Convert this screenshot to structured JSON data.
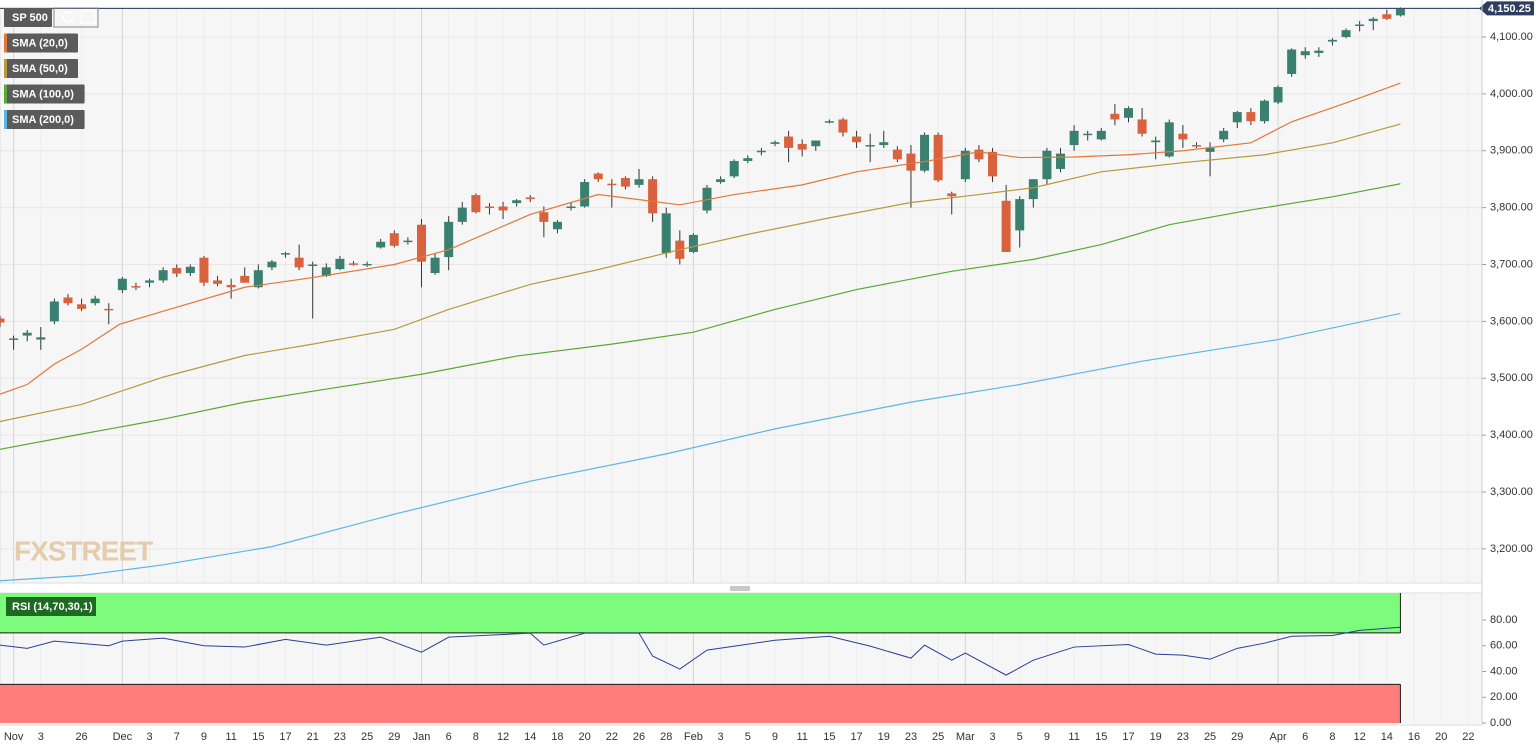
{
  "chart_data": [
    {
      "type": "candlestick",
      "title": "SP 500",
      "xlim": [
        0,
        109
      ],
      "ylim": [
        3140,
        4151
      ],
      "yticks": [
        {
          "value": 3200,
          "label": "3,200.00"
        },
        {
          "value": 3300,
          "label": "3,300.00"
        },
        {
          "value": 3400,
          "label": "3,400.00"
        },
        {
          "value": 3500,
          "label": "3,500.00"
        },
        {
          "value": 3600,
          "label": "3,600.00"
        },
        {
          "value": 3700,
          "label": "3,700.00"
        },
        {
          "value": 3800,
          "label": "3,800.00"
        },
        {
          "value": 3900,
          "label": "3,900.00"
        },
        {
          "value": 4000,
          "label": "4,000.00"
        },
        {
          "value": 4100,
          "label": "4,100.00"
        }
      ],
      "last_price": {
        "value": 4150.25,
        "label": "4,150.25"
      },
      "watermark": "FXSTREET",
      "grid": true,
      "series": [
        {
          "name": "SP 500",
          "up_color": "#3a8070",
          "down_color": "#d9613d",
          "x": [
            0,
            1,
            2,
            3,
            4,
            5,
            6,
            7,
            8,
            9,
            10,
            11,
            12,
            13,
            14,
            15,
            16,
            17,
            18,
            19,
            20,
            21,
            22,
            23,
            24,
            25,
            26,
            27,
            28,
            29,
            30,
            31,
            32,
            33,
            34,
            35,
            36,
            37,
            38,
            39,
            40,
            41,
            42,
            43,
            44,
            45,
            46,
            47,
            48,
            49,
            50,
            51,
            52,
            53,
            54,
            55,
            56,
            57,
            58,
            59,
            60,
            61,
            62,
            63,
            64,
            65,
            66,
            67,
            68,
            69,
            70,
            71,
            72,
            73,
            74,
            75,
            76,
            77,
            78,
            79,
            80,
            81,
            82,
            83,
            84,
            85,
            86,
            87,
            88,
            89,
            90,
            91,
            92,
            93,
            94,
            95,
            96,
            97,
            98,
            99,
            100,
            101,
            102,
            103
          ],
          "open": [
            3605,
            3568,
            3575,
            3568,
            3600,
            3642,
            3630,
            3632,
            3622,
            3655,
            3662,
            3668,
            3672,
            3694,
            3685,
            3712,
            3672,
            3664,
            3680,
            3660,
            3695,
            3718,
            3712,
            3698,
            3680,
            3692,
            3702,
            3700,
            3730,
            3755,
            3740,
            3770,
            3685,
            3713,
            3775,
            3822,
            3802,
            3802,
            3808,
            3818,
            3792,
            3762,
            3800,
            3802,
            3860,
            3842,
            3852,
            3840,
            3850,
            3720,
            3742,
            3722,
            3795,
            3845,
            3855,
            3882,
            3898,
            3912,
            3925,
            3912,
            3908,
            3950,
            3955,
            3925,
            3908,
            3910,
            3902,
            3895,
            3865,
            3928,
            3825,
            3850,
            3902,
            3898,
            3812,
            3760,
            3815,
            3850,
            3868,
            3910,
            3928,
            3920,
            3965,
            3958,
            3955,
            3915,
            3890,
            3930,
            3910,
            3898,
            3920,
            3950,
            3968,
            3952,
            3985,
            4035,
            4068,
            4072,
            4092,
            4100,
            4120,
            4128,
            4140,
            4138
          ],
          "high": [
            3610,
            3575,
            3585,
            3590,
            3640,
            3648,
            3640,
            3645,
            3632,
            3678,
            3668,
            3675,
            3695,
            3700,
            3700,
            3715,
            3680,
            3675,
            3695,
            3700,
            3708,
            3722,
            3735,
            3705,
            3702,
            3715,
            3706,
            3705,
            3745,
            3760,
            3748,
            3780,
            3720,
            3785,
            3810,
            3825,
            3808,
            3810,
            3815,
            3822,
            3802,
            3778,
            3810,
            3850,
            3862,
            3850,
            3855,
            3868,
            3855,
            3800,
            3760,
            3755,
            3840,
            3855,
            3885,
            3892,
            3905,
            3918,
            3935,
            3920,
            3918,
            3955,
            3958,
            3935,
            3930,
            3935,
            3908,
            3910,
            3932,
            3932,
            3828,
            3905,
            3910,
            3905,
            3840,
            3820,
            3850,
            3905,
            3905,
            3945,
            3935,
            3940,
            3982,
            3978,
            3975,
            3925,
            3955,
            3945,
            3915,
            3915,
            3940,
            3970,
            3975,
            3990,
            4015,
            4080,
            4082,
            4082,
            4098,
            4115,
            4128,
            4135,
            4148,
            4152
          ],
          "low": [
            3590,
            3550,
            3565,
            3550,
            3595,
            3628,
            3618,
            3628,
            3595,
            3650,
            3655,
            3660,
            3668,
            3678,
            3680,
            3662,
            3662,
            3640,
            3668,
            3658,
            3690,
            3712,
            3690,
            3605,
            3678,
            3690,
            3698,
            3696,
            3728,
            3730,
            3735,
            3660,
            3682,
            3690,
            3770,
            3790,
            3788,
            3780,
            3802,
            3810,
            3748,
            3755,
            3795,
            3800,
            3845,
            3800,
            3832,
            3835,
            3775,
            3712,
            3700,
            3720,
            3790,
            3842,
            3852,
            3878,
            3892,
            3908,
            3880,
            3890,
            3900,
            3948,
            3925,
            3905,
            3880,
            3905,
            3880,
            3800,
            3862,
            3845,
            3788,
            3845,
            3880,
            3845,
            3722,
            3730,
            3800,
            3840,
            3862,
            3900,
            3918,
            3918,
            3945,
            3950,
            3925,
            3885,
            3888,
            3905,
            3905,
            3855,
            3915,
            3940,
            3945,
            3948,
            3982,
            4030,
            4062,
            4065,
            4085,
            4098,
            4110,
            4112,
            4130,
            4136
          ],
          "close": [
            3598,
            3570,
            3580,
            3572,
            3635,
            3632,
            3622,
            3640,
            3620,
            3675,
            3660,
            3672,
            3690,
            3684,
            3696,
            3668,
            3666,
            3660,
            3668,
            3690,
            3705,
            3720,
            3695,
            3700,
            3695,
            3710,
            3700,
            3701,
            3740,
            3733,
            3742,
            3705,
            3712,
            3775,
            3800,
            3792,
            3800,
            3795,
            3813,
            3815,
            3775,
            3775,
            3802,
            3845,
            3850,
            3840,
            3837,
            3850,
            3790,
            3790,
            3710,
            3752,
            3835,
            3850,
            3882,
            3887,
            3900,
            3915,
            3905,
            3902,
            3918,
            3952,
            3932,
            3915,
            3910,
            3915,
            3885,
            3865,
            3928,
            3848,
            3820,
            3900,
            3885,
            3855,
            3722,
            3815,
            3850,
            3900,
            3895,
            3935,
            3930,
            3935,
            3955,
            3975,
            3930,
            3918,
            3950,
            3920,
            3908,
            3905,
            3935,
            3968,
            3952,
            3988,
            4012,
            4078,
            4075,
            4076,
            4095,
            4112,
            4122,
            4132,
            4132,
            4150.25
          ]
        },
        {
          "name": "SMA (20,0)",
          "color": "#e0793a",
          "x": [
            0,
            2,
            4,
            6,
            8.8,
            12,
            18,
            23,
            29,
            33,
            39,
            44,
            50,
            54,
            59,
            63,
            68,
            72,
            75,
            79,
            83,
            87,
            92,
            95,
            99,
            103
          ],
          "values": [
            3472,
            3489,
            3525,
            3551,
            3595,
            3618,
            3660,
            3677,
            3700,
            3726,
            3788,
            3823,
            3805,
            3823,
            3840,
            3863,
            3881,
            3898,
            3888,
            3889,
            3893,
            3900,
            3914,
            3951,
            3984,
            4019
          ]
        },
        {
          "name": "SMA (50,0)",
          "color": "#b89a3c",
          "x": [
            0,
            6,
            12,
            18,
            23,
            29,
            33,
            39,
            44,
            50,
            55,
            61,
            67,
            72,
            76,
            81,
            87,
            93,
            98,
            103
          ],
          "values": [
            3424,
            3454,
            3502,
            3540,
            3560,
            3586,
            3621,
            3665,
            3691,
            3726,
            3753,
            3782,
            3809,
            3823,
            3835,
            3863,
            3879,
            3893,
            3914,
            3947
          ]
        },
        {
          "name": "SMA (100,0)",
          "color": "#5aa832",
          "x": [
            0,
            6,
            12,
            18,
            24,
            31,
            38,
            45,
            51,
            57,
            63,
            70,
            76,
            81,
            86,
            92,
            98,
            103
          ],
          "values": [
            3375,
            3402,
            3428,
            3458,
            3481,
            3507,
            3539,
            3560,
            3581,
            3621,
            3656,
            3688,
            3709,
            3735,
            3770,
            3796,
            3819,
            3842
          ]
        },
        {
          "name": "SMA (200,0)",
          "color": "#5cb6e4",
          "x": [
            0,
            6,
            12,
            20,
            29,
            39,
            49,
            57,
            67,
            75,
            84,
            94,
            103
          ],
          "values": [
            3144,
            3153,
            3172,
            3204,
            3261,
            3319,
            3367,
            3411,
            3458,
            3489,
            3530,
            3568,
            3614
          ]
        }
      ]
    },
    {
      "type": "line",
      "title": "RSI (14,70,30,1)",
      "xlim": [
        0,
        109
      ],
      "ylim": [
        0,
        101
      ],
      "yticks": [
        {
          "value": 0,
          "label": "0.00"
        },
        {
          "value": 20,
          "label": "20.00"
        },
        {
          "value": 40,
          "label": "40.00"
        },
        {
          "value": 60,
          "label": "60.00"
        },
        {
          "value": 80,
          "label": "80.00"
        }
      ],
      "xticks": [
        {
          "value": 1,
          "label": "Nov"
        },
        3,
        {
          "value": 6,
          "label": "26"
        },
        {
          "value": 9,
          "label": "Dec"
        },
        {
          "value": 11,
          "label": "3"
        },
        {
          "value": 13,
          "label": "7"
        },
        {
          "value": 15,
          "label": "9"
        },
        {
          "value": 17,
          "label": "11"
        },
        {
          "value": 19,
          "label": "15"
        },
        {
          "value": 21,
          "label": "17"
        },
        {
          "value": 23,
          "label": "21"
        },
        {
          "value": 25,
          "label": "23"
        },
        {
          "value": 27,
          "label": "25"
        },
        {
          "value": 29,
          "label": "29"
        },
        {
          "value": 31,
          "label": "Jan"
        },
        {
          "value": 33,
          "label": "6"
        },
        {
          "value": 35,
          "label": "8"
        },
        {
          "value": 37,
          "label": "12"
        },
        {
          "value": 39,
          "label": "14"
        },
        {
          "value": 41,
          "label": "18"
        },
        {
          "value": 43,
          "label": "20"
        },
        {
          "value": 45,
          "label": "22"
        },
        {
          "value": 47,
          "label": "26"
        },
        {
          "value": 49,
          "label": "28"
        },
        {
          "value": 51,
          "label": "Feb"
        },
        {
          "value": 53,
          "label": "3"
        },
        {
          "value": 55,
          "label": "5"
        },
        {
          "value": 57,
          "label": "9"
        },
        {
          "value": 59,
          "label": "11"
        },
        {
          "value": 61,
          "label": "15"
        },
        {
          "value": 63,
          "label": "17"
        },
        {
          "value": 65,
          "label": "19"
        },
        {
          "value": 67,
          "label": "23"
        },
        {
          "value": 69,
          "label": "25"
        },
        {
          "value": 71,
          "label": "Mar"
        },
        {
          "value": 73,
          "label": "3"
        },
        {
          "value": 75,
          "label": "5"
        },
        {
          "value": 77,
          "label": "9"
        },
        {
          "value": 79,
          "label": "11"
        },
        {
          "value": 81,
          "label": "15"
        },
        {
          "value": 83,
          "label": "17"
        },
        {
          "value": 85,
          "label": "19"
        },
        {
          "value": 87,
          "label": "23"
        },
        {
          "value": 89,
          "label": "25"
        },
        {
          "value": 91,
          "label": "29"
        },
        {
          "value": 94,
          "label": "Apr"
        },
        {
          "value": 96,
          "label": "6"
        },
        {
          "value": 98,
          "label": "8"
        },
        {
          "value": 100,
          "label": "12"
        },
        {
          "value": 102,
          "label": "14"
        },
        {
          "value": 104,
          "label": "16"
        },
        {
          "value": 106,
          "label": "20"
        },
        {
          "value": 108,
          "label": "22"
        }
      ],
      "overbought": 70,
      "oversold": 30,
      "overbought_color": "#7dfb7d",
      "oversold_color": "#ff7d7d",
      "series": [
        {
          "name": "RSI",
          "color": "#2b3f93",
          "x": [
            0,
            2,
            4,
            8,
            9,
            12,
            15,
            18,
            21,
            24,
            28,
            31,
            33,
            39,
            40,
            43,
            47,
            48,
            50,
            52,
            57,
            61,
            64,
            67,
            68,
            70,
            71,
            74,
            76,
            79,
            83,
            85,
            87,
            89,
            91,
            93,
            95,
            98,
            100,
            103
          ],
          "values": [
            60.5,
            58,
            63.6,
            60,
            63.6,
            65.9,
            60,
            59,
            65,
            60.5,
            66.7,
            55,
            66.7,
            69.8,
            60.5,
            69.8,
            69.8,
            52,
            41.9,
            56.6,
            64.3,
            67.4,
            59.7,
            50.4,
            60.5,
            48.8,
            54.3,
            37.2,
            48.8,
            59,
            61,
            53.5,
            52.7,
            49.6,
            58,
            62,
            67.4,
            68,
            72,
            74.4
          ]
        }
      ]
    }
  ]
}
